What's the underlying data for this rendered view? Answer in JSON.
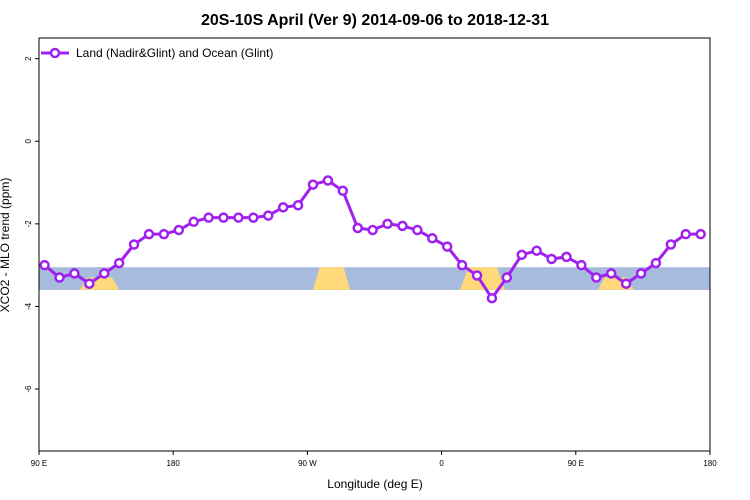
{
  "chart_data": {
    "type": "line",
    "title": "20S-10S April (Ver 9)   2014-09-06 to 2018-12-31",
    "xlabel": "Longitude (deg E)",
    "ylabel": "XCO2 - MLO trend (ppm)",
    "xlim": [
      90,
      450
    ],
    "ylim": [
      -7.5,
      2.5
    ],
    "x_ticks": [
      {
        "value": 90,
        "label": "90 E"
      },
      {
        "value": 162,
        "label": "180"
      },
      {
        "value": 234,
        "label": "90 W"
      },
      {
        "value": 306,
        "label": "0"
      },
      {
        "value": 378,
        "label": "90 E"
      },
      {
        "value": 450,
        "label": "180"
      }
    ],
    "y_ticks": [
      {
        "value": 2,
        "label": "2"
      },
      {
        "value": 0,
        "label": "0"
      },
      {
        "value": -2,
        "label": "-2"
      },
      {
        "value": -4,
        "label": "-4"
      },
      {
        "value": -6,
        "label": "-6"
      }
    ],
    "grid": false,
    "legend_position": "top-left",
    "series": [
      {
        "name": "Land (Nadir&Glint) and Ocean (Glint)",
        "color": "#a020f0",
        "x": [
          93,
          101,
          109,
          117,
          125,
          133,
          141,
          149,
          157,
          165,
          173,
          181,
          189,
          197,
          205,
          213,
          221,
          229,
          237,
          245,
          253,
          261,
          269,
          277,
          285,
          293,
          301,
          309,
          317,
          325,
          333,
          341,
          349,
          357,
          365,
          373,
          381,
          389,
          397,
          405,
          413,
          421,
          429,
          437,
          445
        ],
        "y": [
          -3.0,
          -3.3,
          -3.2,
          -3.45,
          -3.2,
          -2.95,
          -2.5,
          -2.25,
          -2.25,
          -2.15,
          -1.95,
          -1.85,
          -1.85,
          -1.85,
          -1.85,
          -1.8,
          -1.6,
          -1.55,
          -1.05,
          -0.95,
          -1.2,
          -2.1,
          -2.15,
          -2.0,
          -2.05,
          -2.15,
          -2.35,
          -2.55,
          -3.0,
          -3.25,
          -3.8,
          -3.3,
          -2.75,
          -2.65,
          -2.85,
          -2.8,
          -3.0,
          -3.3,
          -3.2,
          -3.45,
          -3.2,
          -2.95,
          -2.5,
          -2.25,
          -2.25
        ]
      }
    ],
    "surface_band": {
      "y_range": [
        -3.6,
        -3.05
      ],
      "ocean_color": "#a7bcdc",
      "land_color": "#ffd97a",
      "land_segments": [
        {
          "x0": 112,
          "x1": 133,
          "y_top": -3.3
        },
        {
          "x0": 237,
          "x1": 257,
          "y_top": -3.05
        },
        {
          "x0": 316,
          "x1": 340,
          "y_top": -3.05
        },
        {
          "x0": 390,
          "x1": 409,
          "y_top": -3.3
        }
      ]
    }
  }
}
